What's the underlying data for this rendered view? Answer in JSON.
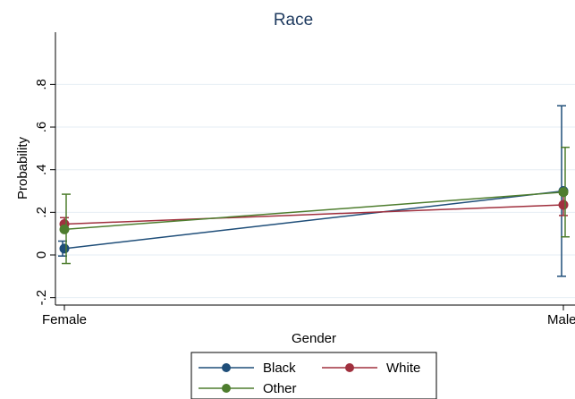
{
  "chart_data": {
    "type": "line",
    "title": "Race",
    "xlabel": "Gender",
    "ylabel": "Probability",
    "categories": [
      "Female",
      "Male"
    ],
    "yticks": [
      {
        "value": -0.2,
        "label": "-.2"
      },
      {
        "value": 0,
        "label": "0"
      },
      {
        "value": 0.2,
        "label": ".2"
      },
      {
        "value": 0.4,
        "label": ".4"
      },
      {
        "value": 0.6,
        "label": ".6"
      },
      {
        "value": 0.8,
        "label": ".8"
      }
    ],
    "ylim": [
      -0.235,
      1.045
    ],
    "grid": true,
    "legend_position": "bottom",
    "series": [
      {
        "name": "Black",
        "color": "#1f4e79",
        "values": [
          0.03,
          0.3
        ],
        "ci_low": [
          -0.005,
          -0.1
        ],
        "ci_high": [
          0.065,
          0.7
        ]
      },
      {
        "name": "White",
        "color": "#a0303e",
        "values": [
          0.145,
          0.235
        ],
        "ci_low": [
          0.115,
          0.185
        ],
        "ci_high": [
          0.175,
          0.285
        ]
      },
      {
        "name": "Other",
        "color": "#4e7d2e",
        "values": [
          0.12,
          0.295
        ],
        "ci_low": [
          -0.04,
          0.085
        ],
        "ci_high": [
          0.285,
          0.505
        ]
      }
    ]
  }
}
